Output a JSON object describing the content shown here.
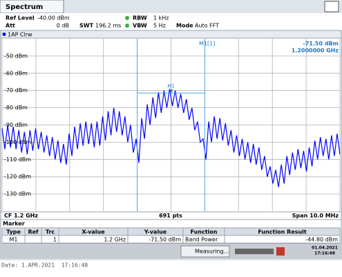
{
  "tab": "Spectrum",
  "header": {
    "ref_level_label": "Ref Level",
    "ref_level": "-40.00 dBm",
    "att_label": "Att",
    "att": "0 dB",
    "swt_label": "SWT",
    "swt": "196.2 ms",
    "rbw_label": "RBW",
    "rbw": "1 kHz",
    "vbw_label": "VBW",
    "vbw": "5 Hz",
    "mode_label": "Mode",
    "mode": "Auto FFT"
  },
  "chart_data": {
    "type": "line",
    "series": [
      {
        "name": "1AP Clrw",
        "color": "#0000ff",
        "values": [
          -92,
          -104,
          -90,
          -103,
          -91,
          -104,
          -93,
          -106,
          -94,
          -107,
          -93,
          -105,
          -92,
          -104,
          -94,
          -106,
          -96,
          -108,
          -97,
          -110,
          -99,
          -112,
          -101,
          -113,
          -95,
          -108,
          -91,
          -104,
          -89,
          -102,
          -88,
          -101,
          -89,
          -103,
          -88,
          -102,
          -85,
          -99,
          -82,
          -96,
          -80,
          -94,
          -82,
          -96,
          -85,
          -100,
          -90,
          -106,
          -98,
          -112,
          -86,
          -98,
          -78,
          -90,
          -74,
          -86,
          -71,
          -83,
          -70,
          -80,
          -69,
          -79,
          -70,
          -80,
          -72,
          -83,
          -75,
          -87,
          -80,
          -93,
          -88,
          -100,
          -98,
          -110,
          -88,
          -100,
          -85,
          -98,
          -86,
          -99,
          -89,
          -102,
          -93,
          -106,
          -96,
          -108,
          -98,
          -110,
          -100,
          -112,
          -101,
          -113,
          -103,
          -116,
          -108,
          -120,
          -114,
          -124,
          -116,
          -126,
          -113,
          -124,
          -108,
          -119,
          -106,
          -116,
          -104,
          -115,
          -105,
          -117,
          -103,
          -114,
          -99,
          -110,
          -97,
          -108,
          -98,
          -110,
          -96,
          -108,
          -95,
          -107
        ]
      }
    ],
    "ylim": [
      -140,
      -40
    ],
    "yticks": [
      {
        "value": -50,
        "label": "-50 dBm"
      },
      {
        "value": -60,
        "label": "-60 dBm"
      },
      {
        "value": -70,
        "label": "-70 dBm"
      },
      {
        "value": -80,
        "label": "-80 dBm"
      },
      {
        "value": -90,
        "label": "-90 dBm"
      },
      {
        "value": -100,
        "label": "-100 dBm"
      },
      {
        "value": -110,
        "label": "-110 dBm"
      },
      {
        "value": -120,
        "label": "-120 dBm"
      },
      {
        "value": -130,
        "label": "-130 dBm"
      }
    ],
    "grid": true,
    "marker": {
      "name": "M1",
      "label": "M1[1]",
      "value": -71.5,
      "value_label": "-71.50 dBm",
      "x_label": "1.2000000 GHz"
    },
    "center": "CF 1.2 GHz",
    "points": "691 pts",
    "span": "Span 10.0 MHz"
  },
  "marker_table": {
    "title": "Marker",
    "columns": [
      "Type",
      "Ref",
      "Trc",
      "X-value",
      "Y-value",
      "Function",
      "Function Result"
    ],
    "rows": [
      [
        "M1",
        null,
        "1",
        "1.2 GHz",
        "-71.50 dBm",
        "Band Power",
        "-44.80 dBm"
      ]
    ]
  },
  "status": {
    "message": "Measuring...",
    "date": "01.04.2021",
    "time": "17:16:48"
  },
  "footer_date": "Date: 1.APR.2021  17:16:48"
}
